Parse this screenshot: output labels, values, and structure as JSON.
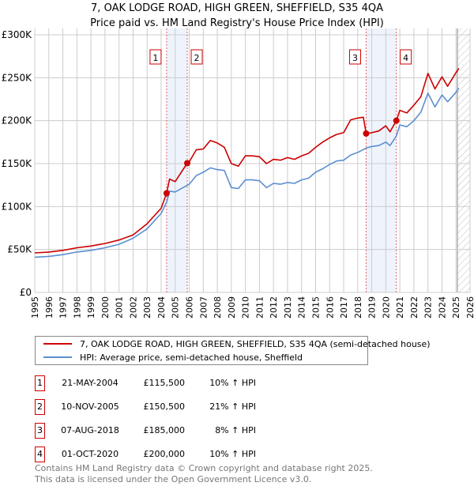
{
  "title_line1": "7, OAK LODGE ROAD, HIGH GREEN, SHEFFIELD, S35 4QA",
  "title_line2": "Price paid vs. HM Land Registry's House Price Index (HPI)",
  "colors": {
    "property": "#cc0000",
    "hpi": "#5b8fd0",
    "band": "#eef3fc",
    "grid": "#cccccc"
  },
  "chart_data": {
    "type": "line",
    "xlim": [
      1995,
      2026
    ],
    "ylim": [
      0,
      300000
    ],
    "x_ticks": [
      1995,
      1996,
      1997,
      1998,
      1999,
      2000,
      2001,
      2002,
      2003,
      2004,
      2005,
      2006,
      2007,
      2008,
      2009,
      2010,
      2011,
      2012,
      2013,
      2014,
      2015,
      2016,
      2017,
      2018,
      2019,
      2020,
      2021,
      2022,
      2023,
      2024,
      2025,
      2026
    ],
    "y_ticks": [
      {
        "v": 0,
        "label": "£0"
      },
      {
        "v": 50000,
        "label": "£50K"
      },
      {
        "v": 100000,
        "label": "£100K"
      },
      {
        "v": 150000,
        "label": "£150K"
      },
      {
        "v": 200000,
        "label": "£200K"
      },
      {
        "v": 250000,
        "label": "£250K"
      },
      {
        "v": 300000,
        "label": "£300K"
      }
    ],
    "grid": true,
    "forecast_hatch_from": 2025.1,
    "series": [
      {
        "name": "7, OAK LODGE ROAD, HIGH GREEN, SHEFFIELD, S35 4QA (semi-detached house)",
        "color": "#cc0000",
        "x": [
          1995,
          1996,
          1997,
          1998,
          1999,
          2000,
          2001,
          2002,
          2003,
          2004,
          2004.39,
          2004.6,
          2005,
          2005.86,
          2006,
          2006.5,
          2007,
          2007.5,
          2008,
          2008.5,
          2009,
          2009.5,
          2010,
          2010.5,
          2011,
          2011.5,
          2012,
          2012.5,
          2013,
          2013.5,
          2014,
          2014.5,
          2015,
          2015.5,
          2016,
          2016.5,
          2017,
          2017.5,
          2018,
          2018.4,
          2018.6,
          2019,
          2019.5,
          2020,
          2020.3,
          2020.75,
          2021,
          2021.5,
          2022,
          2022.5,
          2023,
          2023.5,
          2024,
          2024.4,
          2025,
          2025.2
        ],
        "y": [
          46000,
          47000,
          49000,
          52000,
          54000,
          57000,
          61000,
          67000,
          80000,
          98000,
          115500,
          132000,
          129000,
          150500,
          152000,
          166000,
          167000,
          177000,
          174000,
          169000,
          150000,
          147000,
          159000,
          159000,
          158000,
          150000,
          155000,
          154000,
          157000,
          155000,
          159000,
          162000,
          169000,
          175000,
          180000,
          184000,
          186000,
          201000,
          203000,
          204000,
          185000,
          186000,
          188000,
          194000,
          187000,
          200000,
          212000,
          209000,
          218000,
          228000,
          255000,
          237000,
          251000,
          240000,
          256000,
          261000
        ]
      },
      {
        "name": "HPI: Average price, semi-detached house, Sheffield",
        "color": "#5b8fd0",
        "x": [
          1995,
          1996,
          1997,
          1998,
          1999,
          2000,
          2001,
          2002,
          2003,
          2004,
          2004.39,
          2004.6,
          2005,
          2006,
          2006.5,
          2007,
          2007.5,
          2008,
          2008.5,
          2009,
          2009.5,
          2010,
          2010.5,
          2011,
          2011.5,
          2012,
          2012.5,
          2013,
          2013.5,
          2014,
          2014.5,
          2015,
          2015.5,
          2016,
          2016.5,
          2017,
          2017.5,
          2018,
          2018.6,
          2019,
          2019.5,
          2020,
          2020.3,
          2020.75,
          2021,
          2021.5,
          2022,
          2022.5,
          2023,
          2023.5,
          2024,
          2024.4,
          2025,
          2025.2
        ],
        "y": [
          41000,
          42000,
          44000,
          47000,
          49000,
          52000,
          56000,
          63000,
          74000,
          92000,
          105000,
          118000,
          117000,
          126000,
          136000,
          140000,
          145000,
          143000,
          142000,
          122000,
          121000,
          131000,
          131000,
          130000,
          122000,
          127000,
          126000,
          128000,
          127000,
          131000,
          133000,
          140000,
          144000,
          149000,
          153000,
          154000,
          160000,
          163000,
          168000,
          170000,
          171000,
          175000,
          171000,
          182000,
          195000,
          193000,
          200000,
          210000,
          232000,
          216000,
          230000,
          222000,
          233000,
          238000
        ]
      }
    ],
    "sales": [
      {
        "num": "1",
        "date": "21-MAY-2004",
        "x": 2004.39,
        "price": 115500,
        "price_label": "£115,500",
        "hpi": "10% ↑ HPI"
      },
      {
        "num": "2",
        "date": "10-NOV-2005",
        "x": 2005.86,
        "price": 150500,
        "price_label": "£150,500",
        "hpi": "21% ↑ HPI"
      },
      {
        "num": "3",
        "date": "07-AUG-2018",
        "x": 2018.6,
        "price": 185000,
        "price_label": "£185,000",
        "hpi": "8% ↑ HPI"
      },
      {
        "num": "4",
        "date": "01-OCT-2020",
        "x": 2020.75,
        "price": 200000,
        "price_label": "£200,000",
        "hpi": "10% ↑ HPI"
      }
    ]
  },
  "legend": {
    "property": "7, OAK LODGE ROAD, HIGH GREEN, SHEFFIELD, S35 4QA (semi-detached house)",
    "hpi": "HPI: Average price, semi-detached house, Sheffield"
  },
  "footer": {
    "line1": "Contains HM Land Registry data © Crown copyright and database right 2025.",
    "line2": "This data is licensed under the Open Government Licence v3.0."
  }
}
